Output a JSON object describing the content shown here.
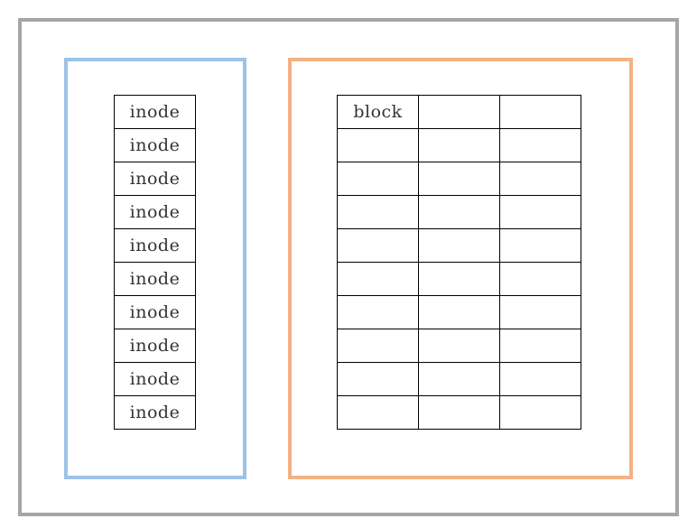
{
  "colors": {
    "outer_border": "#a6a6a6",
    "inode_region_border": "#9dc3e6",
    "block_region_border": "#f4b183",
    "cell_border": "#000000",
    "text": "#333333"
  },
  "inodes": {
    "cells": [
      "inode",
      "inode",
      "inode",
      "inode",
      "inode",
      "inode",
      "inode",
      "inode",
      "inode",
      "inode"
    ]
  },
  "blocks": {
    "rows": [
      [
        "block",
        "",
        ""
      ],
      [
        "",
        "",
        ""
      ],
      [
        "",
        "",
        ""
      ],
      [
        "",
        "",
        ""
      ],
      [
        "",
        "",
        ""
      ],
      [
        "",
        "",
        ""
      ],
      [
        "",
        "",
        ""
      ],
      [
        "",
        "",
        ""
      ],
      [
        "",
        "",
        ""
      ],
      [
        "",
        "",
        ""
      ]
    ]
  }
}
